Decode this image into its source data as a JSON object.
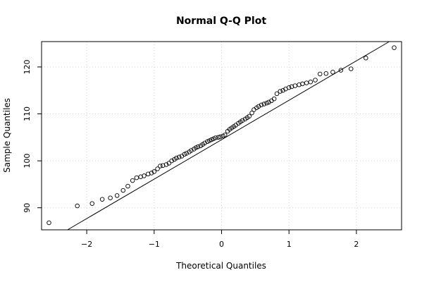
{
  "chart_data": {
    "type": "scatter",
    "title": "Normal Q-Q Plot",
    "xlabel": "Theoretical Quantiles",
    "ylabel": "Sample Quantiles",
    "xlim": [
      -2.67,
      2.67
    ],
    "ylim": [
      85.3,
      125.4
    ],
    "xticks": [
      -2,
      -1,
      0,
      1,
      2
    ],
    "yticks": [
      90,
      100,
      110,
      120
    ],
    "grid": true,
    "legend": "none",
    "reference_line": {
      "slope": 8.4,
      "intercept": 104.5
    },
    "points": {
      "x": [
        -2.56,
        -2.14,
        -1.92,
        -1.77,
        -1.65,
        -1.55,
        -1.46,
        -1.39,
        -1.32,
        -1.26,
        -1.2,
        -1.15,
        -1.09,
        -1.04,
        -1.0,
        -0.95,
        -0.91,
        -0.87,
        -0.82,
        -0.78,
        -0.74,
        -0.7,
        -0.67,
        -0.63,
        -0.59,
        -0.55,
        -0.52,
        -0.48,
        -0.45,
        -0.41,
        -0.38,
        -0.35,
        -0.31,
        -0.28,
        -0.25,
        -0.21,
        -0.18,
        -0.15,
        -0.12,
        -0.09,
        -0.05,
        -0.02,
        0.02,
        0.05,
        0.09,
        0.12,
        0.15,
        0.18,
        0.21,
        0.25,
        0.28,
        0.31,
        0.35,
        0.38,
        0.41,
        0.45,
        0.48,
        0.52,
        0.55,
        0.59,
        0.63,
        0.67,
        0.7,
        0.74,
        0.78,
        0.82,
        0.87,
        0.91,
        0.95,
        1.0,
        1.04,
        1.09,
        1.15,
        1.2,
        1.26,
        1.32,
        1.39,
        1.46,
        1.55,
        1.65,
        1.77,
        1.92,
        2.14,
        2.56
      ],
      "y": [
        86.8,
        90.4,
        90.9,
        91.8,
        92.1,
        92.6,
        93.7,
        94.6,
        95.8,
        96.4,
        96.6,
        96.8,
        97.2,
        97.4,
        97.7,
        98.3,
        98.9,
        99.0,
        99.2,
        99.5,
        100.0,
        100.3,
        100.6,
        100.8,
        101.0,
        101.4,
        101.6,
        101.9,
        102.2,
        102.5,
        102.8,
        103.0,
        103.2,
        103.5,
        103.8,
        104.1,
        104.3,
        104.5,
        104.7,
        104.9,
        105.0,
        105.1,
        105.3,
        105.5,
        106.3,
        106.7,
        107.0,
        107.3,
        107.6,
        108.0,
        108.3,
        108.6,
        108.9,
        109.2,
        109.5,
        110.2,
        110.9,
        111.3,
        111.6,
        111.9,
        112.1,
        112.3,
        112.5,
        112.8,
        113.2,
        114.3,
        114.8,
        115.0,
        115.3,
        115.6,
        115.8,
        116.0,
        116.2,
        116.4,
        116.6,
        116.8,
        117.2,
        118.5,
        118.6,
        118.9,
        119.3,
        119.6,
        121.9,
        124.1
      ]
    }
  }
}
